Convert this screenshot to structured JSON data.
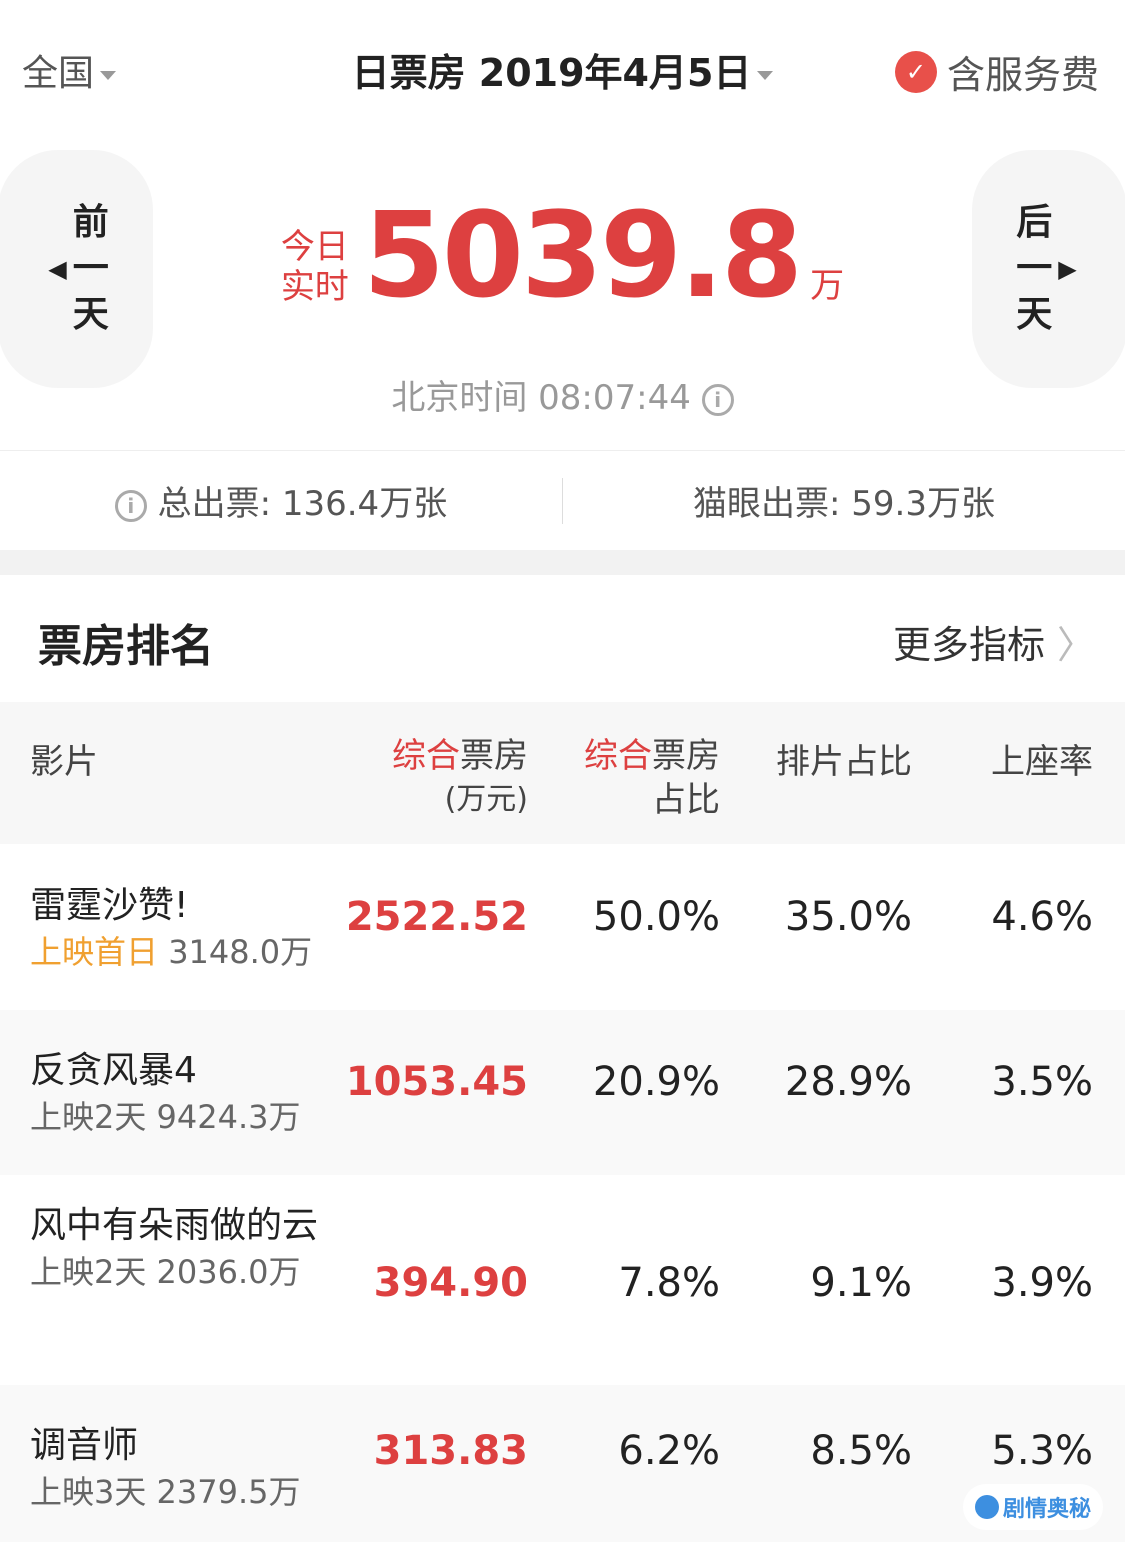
{
  "header": {
    "region": "全国",
    "title": "日票房 2019年4月5日",
    "service_fee": "含服务费",
    "service_fee_checked": true
  },
  "nav": {
    "prev": [
      "前",
      "一",
      "天"
    ],
    "next": [
      "后",
      "一",
      "天"
    ]
  },
  "summary": {
    "live_label_1": "今日",
    "live_label_2": "实时",
    "total": "5039.8",
    "unit": "万",
    "time": "北京时间 08:07:44"
  },
  "stats": {
    "total_tickets": "总出票: 136.4万张",
    "maoyan_tickets": "猫眼出票: 59.3万张"
  },
  "ranking": {
    "title": "票房排名",
    "more": "更多指标",
    "headers": {
      "film": "影片",
      "box_hl": "综合",
      "box_rest": "票房",
      "box_unit": "(万元)",
      "share_hl": "综合",
      "share_rest": "票房",
      "share_line2": "占比",
      "screen": "排片占比",
      "occupancy": "上座率"
    },
    "rows": [
      {
        "name": "雷霆沙赞!",
        "release": "上映首日",
        "cumulative": "3148.0万",
        "box": "2522.52",
        "share": "50.0%",
        "screen": "35.0%",
        "occupancy": "4.6%"
      },
      {
        "name": "反贪风暴4",
        "release": "上映2天",
        "cumulative": "9424.3万",
        "box": "1053.45",
        "share": "20.9%",
        "screen": "28.9%",
        "occupancy": "3.5%"
      },
      {
        "name": "风中有朵雨做的云",
        "release": "上映2天",
        "cumulative": "2036.0万",
        "box": "394.90",
        "share": "7.8%",
        "screen": "9.1%",
        "occupancy": "3.9%"
      },
      {
        "name": "调音师",
        "release": "上映3天",
        "cumulative": "2379.5万",
        "box": "313.83",
        "share": "6.2%",
        "screen": "8.5%",
        "occupancy": "5.3%"
      }
    ]
  },
  "watermark": "剧情奥秘",
  "colors": {
    "accent": "#dd4040",
    "orange": "#f0a030"
  }
}
